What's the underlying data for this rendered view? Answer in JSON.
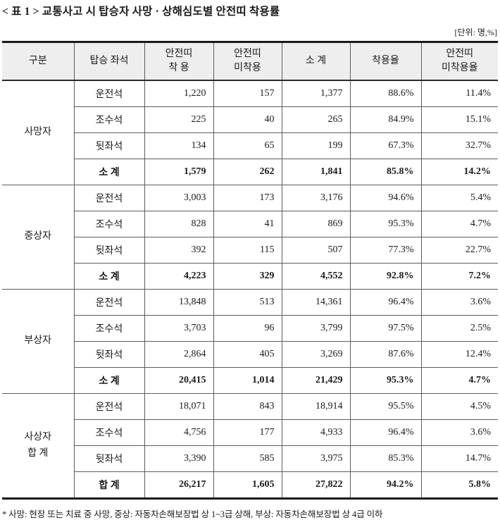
{
  "title": "< 표 1 > 교통사고 시 탑승자 사망 · 상해심도별 안전띠 착용률",
  "unit_label": "[단위: 명,%]",
  "footnote": "* 사망: 현장 또는 치료 중 사망, 중상: 자동차손해보장법 상 1~3급 상해, 부상: 자동차손해보장법 상 4급 이하",
  "colors": {
    "header_bg": "#eeeeee",
    "border_heavy": "#1a1a1a",
    "border_light": "#5c5c5c",
    "text": "#1a1a1a"
  },
  "table": {
    "columns": [
      {
        "key": "category",
        "lines": [
          "구분"
        ]
      },
      {
        "key": "seat",
        "lines": [
          "탑승 좌석"
        ]
      },
      {
        "key": "belt-on",
        "lines": [
          "안전띠",
          "착 용"
        ]
      },
      {
        "key": "belt-off",
        "lines": [
          "안전띠",
          "미착용"
        ]
      },
      {
        "key": "subtotal",
        "lines": [
          "소 계"
        ]
      },
      {
        "key": "wear-rate",
        "lines": [
          "착용율"
        ]
      },
      {
        "key": "nonwear-rate",
        "lines": [
          "안전띠",
          "미착용율"
        ]
      }
    ],
    "groups": [
      {
        "label_lines": [
          "사망자"
        ],
        "rows": [
          {
            "seat": "운전석",
            "belt_on": "1,220",
            "belt_off": "157",
            "subtotal": "1,377",
            "wear_rate": "88.6%",
            "nonwear_rate": "11.4%",
            "is_total": false
          },
          {
            "seat": "조수석",
            "belt_on": "225",
            "belt_off": "40",
            "subtotal": "265",
            "wear_rate": "84.9%",
            "nonwear_rate": "15.1%",
            "is_total": false
          },
          {
            "seat": "뒷좌석",
            "belt_on": "134",
            "belt_off": "65",
            "subtotal": "199",
            "wear_rate": "67.3%",
            "nonwear_rate": "32.7%",
            "is_total": false
          },
          {
            "seat": "소 계",
            "belt_on": "1,579",
            "belt_off": "262",
            "subtotal": "1,841",
            "wear_rate": "85.8%",
            "nonwear_rate": "14.2%",
            "is_total": true
          }
        ]
      },
      {
        "label_lines": [
          "중상자"
        ],
        "rows": [
          {
            "seat": "운전석",
            "belt_on": "3,003",
            "belt_off": "173",
            "subtotal": "3,176",
            "wear_rate": "94.6%",
            "nonwear_rate": "5.4%",
            "is_total": false
          },
          {
            "seat": "조수석",
            "belt_on": "828",
            "belt_off": "41",
            "subtotal": "869",
            "wear_rate": "95.3%",
            "nonwear_rate": "4.7%",
            "is_total": false
          },
          {
            "seat": "뒷좌석",
            "belt_on": "392",
            "belt_off": "115",
            "subtotal": "507",
            "wear_rate": "77.3%",
            "nonwear_rate": "22.7%",
            "is_total": false
          },
          {
            "seat": "소 계",
            "belt_on": "4,223",
            "belt_off": "329",
            "subtotal": "4,552",
            "wear_rate": "92.8%",
            "nonwear_rate": "7.2%",
            "is_total": true
          }
        ]
      },
      {
        "label_lines": [
          "부상자"
        ],
        "rows": [
          {
            "seat": "운전석",
            "belt_on": "13,848",
            "belt_off": "513",
            "subtotal": "14,361",
            "wear_rate": "96.4%",
            "nonwear_rate": "3.6%",
            "is_total": false
          },
          {
            "seat": "조수석",
            "belt_on": "3,703",
            "belt_off": "96",
            "subtotal": "3,799",
            "wear_rate": "97.5%",
            "nonwear_rate": "2.5%",
            "is_total": false
          },
          {
            "seat": "뒷좌석",
            "belt_on": "2,864",
            "belt_off": "405",
            "subtotal": "3,269",
            "wear_rate": "87.6%",
            "nonwear_rate": "12.4%",
            "is_total": false
          },
          {
            "seat": "소 계",
            "belt_on": "20,415",
            "belt_off": "1,014",
            "subtotal": "21,429",
            "wear_rate": "95.3%",
            "nonwear_rate": "4.7%",
            "is_total": true
          }
        ]
      },
      {
        "label_lines": [
          "사상자",
          "합 계"
        ],
        "rows": [
          {
            "seat": "운전석",
            "belt_on": "18,071",
            "belt_off": "843",
            "subtotal": "18,914",
            "wear_rate": "95.5%",
            "nonwear_rate": "4.5%",
            "is_total": false
          },
          {
            "seat": "조수석",
            "belt_on": "4,756",
            "belt_off": "177",
            "subtotal": "4,933",
            "wear_rate": "96.4%",
            "nonwear_rate": "3.6%",
            "is_total": false
          },
          {
            "seat": "뒷좌석",
            "belt_on": "3,390",
            "belt_off": "585",
            "subtotal": "3,975",
            "wear_rate": "85.3%",
            "nonwear_rate": "14.7%",
            "is_total": false
          },
          {
            "seat": "합 계",
            "belt_on": "26,217",
            "belt_off": "1,605",
            "subtotal": "27,822",
            "wear_rate": "94.2%",
            "nonwear_rate": "5.8%",
            "is_total": true
          }
        ]
      }
    ]
  }
}
